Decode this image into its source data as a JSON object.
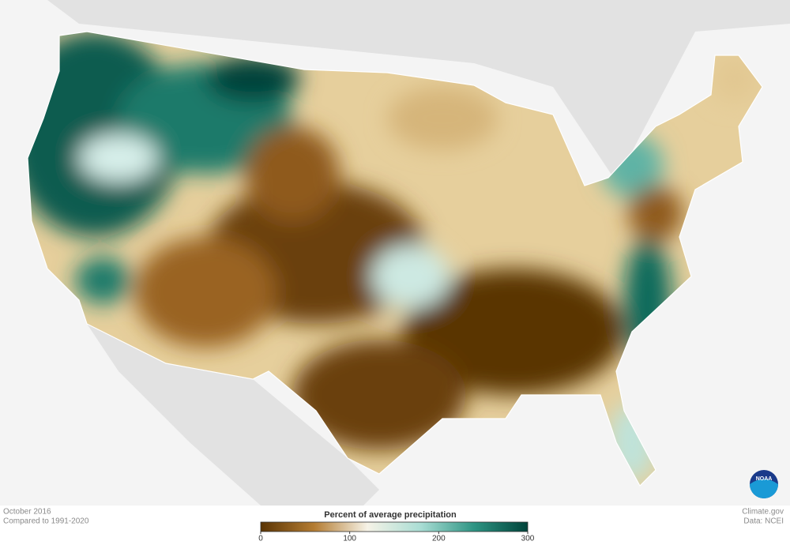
{
  "date": "October 2016",
  "baseline": "Compared to 1991-2020",
  "legend": {
    "title": "Percent of average precipitation",
    "min": 0,
    "max": 300,
    "ticks": [
      0,
      100,
      200,
      300
    ],
    "colors": [
      "#5a3404",
      "#b47c32",
      "#f6f3e7",
      "#a9ddd4",
      "#2d9483",
      "#00433a"
    ]
  },
  "credit": "Climate.gov",
  "source": "Data: NCEI",
  "logo": "NOAA"
}
